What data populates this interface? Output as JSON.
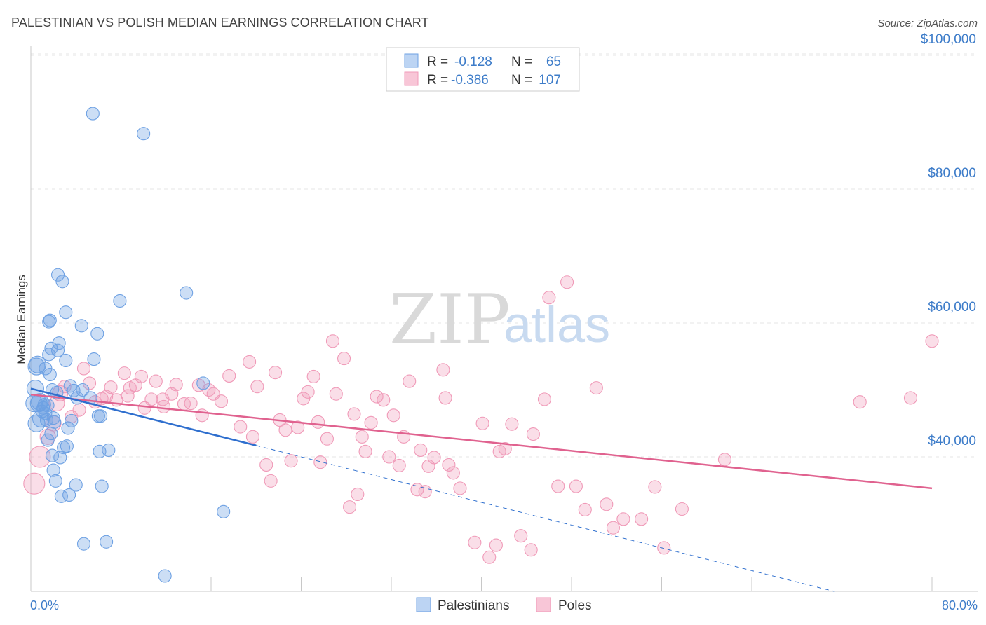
{
  "title": "PALESTINIAN VS POLISH MEDIAN EARNINGS CORRELATION CHART",
  "source": "Source: ZipAtlas.com",
  "watermark": {
    "part1": "ZIP",
    "part2": "atlas"
  },
  "colors": {
    "blue": "#6ea1e3",
    "blue_line": "#2f6fce",
    "pink": "#f09ab8",
    "pink_line": "#e0628f",
    "axis_text": "#3d7cc9"
  },
  "legend": {
    "rows": [
      {
        "r_label": "R =",
        "r_value": "-0.128",
        "n_label": "N =",
        "n_value": "65"
      },
      {
        "r_label": "R =",
        "r_value": "-0.386",
        "n_label": "N =",
        "n_value": "107"
      }
    ]
  },
  "bottom_legend": [
    "Palestinians",
    "Poles"
  ],
  "chart_data": {
    "type": "scatter",
    "title": "PALESTINIAN VS POLISH MEDIAN EARNINGS CORRELATION CHART",
    "xlabel": "",
    "ylabel": "Median Earnings",
    "xlim": [
      0,
      80
    ],
    "ylim": [
      21000,
      103000
    ],
    "x_tick_labels": [
      "0.0%",
      "80.0%"
    ],
    "y_ticks": [
      40000,
      60000,
      80000,
      100000
    ],
    "y_tick_labels": [
      "$40,000",
      "$60,000",
      "$80,000",
      "$100,000"
    ],
    "series": [
      {
        "name": "Palestinians",
        "R": -0.128,
        "N": 65,
        "trend": {
          "x": [
            0,
            20
          ],
          "y": [
            50200,
            41700
          ],
          "dashed_to": [
            80,
            16200
          ]
        },
        "points": [
          [
            0.3,
            48000
          ],
          [
            0.4,
            50200
          ],
          [
            0.5,
            45000
          ],
          [
            0.5,
            53500
          ],
          [
            0.6,
            53800
          ],
          [
            0.7,
            48000
          ],
          [
            0.8,
            48200
          ],
          [
            0.9,
            45700
          ],
          [
            1.0,
            46800
          ],
          [
            1.1,
            47300
          ],
          [
            1.2,
            47800
          ],
          [
            1.3,
            53200
          ],
          [
            1.3,
            46500
          ],
          [
            1.4,
            45500
          ],
          [
            1.5,
            47700
          ],
          [
            1.5,
            42500
          ],
          [
            1.6,
            55300
          ],
          [
            1.6,
            60200
          ],
          [
            1.7,
            52300
          ],
          [
            1.7,
            60400
          ],
          [
            1.8,
            56200
          ],
          [
            1.8,
            43500
          ],
          [
            1.9,
            40200
          ],
          [
            1.9,
            50000
          ],
          [
            2.0,
            38000
          ],
          [
            2.0,
            45800
          ],
          [
            2.1,
            45200
          ],
          [
            2.2,
            36400
          ],
          [
            2.3,
            49600
          ],
          [
            2.4,
            67200
          ],
          [
            2.4,
            55900
          ],
          [
            2.5,
            57000
          ],
          [
            2.6,
            39900
          ],
          [
            2.7,
            34100
          ],
          [
            2.8,
            66200
          ],
          [
            2.9,
            41400
          ],
          [
            3.1,
            61600
          ],
          [
            3.1,
            54400
          ],
          [
            3.2,
            41600
          ],
          [
            3.3,
            44300
          ],
          [
            3.4,
            34300
          ],
          [
            3.5,
            50600
          ],
          [
            3.6,
            45400
          ],
          [
            3.8,
            49900
          ],
          [
            4.0,
            35800
          ],
          [
            4.1,
            48800
          ],
          [
            4.5,
            59600
          ],
          [
            4.6,
            50000
          ],
          [
            4.7,
            27000
          ],
          [
            5.3,
            48800
          ],
          [
            5.6,
            54600
          ],
          [
            5.9,
            58400
          ],
          [
            6.0,
            46100
          ],
          [
            6.1,
            40800
          ],
          [
            6.2,
            46100
          ],
          [
            6.3,
            35600
          ],
          [
            6.7,
            27300
          ],
          [
            6.9,
            41000
          ],
          [
            7.9,
            63300
          ],
          [
            10.0,
            88300
          ],
          [
            11.9,
            22200
          ],
          [
            13.8,
            64500
          ],
          [
            15.3,
            51000
          ],
          [
            17.1,
            31800
          ],
          [
            5.5,
            91300
          ]
        ]
      },
      {
        "name": "Poles",
        "R": -0.386,
        "N": 107,
        "trend": {
          "x": [
            0,
            80
          ],
          "y": [
            49300,
            35300
          ]
        },
        "points": [
          [
            0.3,
            36000
          ],
          [
            0.8,
            40000
          ],
          [
            1.5,
            43000
          ],
          [
            2.0,
            45000
          ],
          [
            2.3,
            48000
          ],
          [
            2.6,
            49500
          ],
          [
            3.0,
            50500
          ],
          [
            3.6,
            46000
          ],
          [
            4.3,
            47000
          ],
          [
            4.7,
            53200
          ],
          [
            5.2,
            51000
          ],
          [
            5.7,
            48200
          ],
          [
            6.3,
            48700
          ],
          [
            6.7,
            49000
          ],
          [
            7.1,
            50400
          ],
          [
            7.6,
            48500
          ],
          [
            8.3,
            52500
          ],
          [
            8.6,
            49100
          ],
          [
            8.8,
            50300
          ],
          [
            9.3,
            50700
          ],
          [
            9.8,
            52000
          ],
          [
            10.1,
            47300
          ],
          [
            10.7,
            48600
          ],
          [
            11.1,
            51300
          ],
          [
            11.7,
            48600
          ],
          [
            11.8,
            47500
          ],
          [
            12.5,
            49400
          ],
          [
            12.9,
            50800
          ],
          [
            13.6,
            47900
          ],
          [
            14.2,
            48000
          ],
          [
            14.9,
            50700
          ],
          [
            15.2,
            46200
          ],
          [
            15.8,
            50000
          ],
          [
            16.2,
            49400
          ],
          [
            16.9,
            48300
          ],
          [
            17.6,
            52100
          ],
          [
            18.6,
            44500
          ],
          [
            19.4,
            54200
          ],
          [
            19.7,
            43000
          ],
          [
            20.1,
            50500
          ],
          [
            20.9,
            38800
          ],
          [
            21.3,
            36400
          ],
          [
            21.7,
            52600
          ],
          [
            22.1,
            45500
          ],
          [
            22.6,
            44000
          ],
          [
            23.1,
            39400
          ],
          [
            23.7,
            44400
          ],
          [
            24.2,
            48700
          ],
          [
            24.6,
            49700
          ],
          [
            25.1,
            52000
          ],
          [
            25.5,
            45200
          ],
          [
            25.7,
            39200
          ],
          [
            26.3,
            42700
          ],
          [
            26.8,
            57300
          ],
          [
            27.1,
            49400
          ],
          [
            27.8,
            54700
          ],
          [
            28.3,
            32500
          ],
          [
            28.7,
            46400
          ],
          [
            29.4,
            43000
          ],
          [
            29.7,
            40800
          ],
          [
            30.2,
            45100
          ],
          [
            30.7,
            49000
          ],
          [
            31.3,
            48500
          ],
          [
            31.8,
            40000
          ],
          [
            32.2,
            46200
          ],
          [
            32.7,
            38700
          ],
          [
            33.1,
            43000
          ],
          [
            33.6,
            51300
          ],
          [
            34.3,
            35100
          ],
          [
            34.6,
            41000
          ],
          [
            35.0,
            34800
          ],
          [
            35.3,
            38600
          ],
          [
            35.8,
            39900
          ],
          [
            36.6,
            53000
          ],
          [
            36.8,
            48800
          ],
          [
            37.1,
            38800
          ],
          [
            37.5,
            37600
          ],
          [
            38.1,
            35300
          ],
          [
            39.4,
            27200
          ],
          [
            40.1,
            45000
          ],
          [
            40.7,
            25000
          ],
          [
            41.3,
            26800
          ],
          [
            41.6,
            40800
          ],
          [
            42.1,
            41200
          ],
          [
            42.7,
            44900
          ],
          [
            43.5,
            28200
          ],
          [
            44.4,
            26100
          ],
          [
            44.6,
            43400
          ],
          [
            45.6,
            48600
          ],
          [
            46.0,
            63800
          ],
          [
            46.8,
            35600
          ],
          [
            47.6,
            66100
          ],
          [
            48.4,
            35600
          ],
          [
            49.2,
            32100
          ],
          [
            50.2,
            50300
          ],
          [
            51.1,
            32900
          ],
          [
            51.7,
            29400
          ],
          [
            52.6,
            30700
          ],
          [
            54.2,
            30700
          ],
          [
            55.4,
            35500
          ],
          [
            56.2,
            26400
          ],
          [
            57.8,
            32200
          ],
          [
            61.6,
            39600
          ],
          [
            73.6,
            48200
          ],
          [
            78.1,
            48800
          ],
          [
            80.0,
            57300
          ],
          [
            29.0,
            34400
          ]
        ]
      }
    ]
  }
}
